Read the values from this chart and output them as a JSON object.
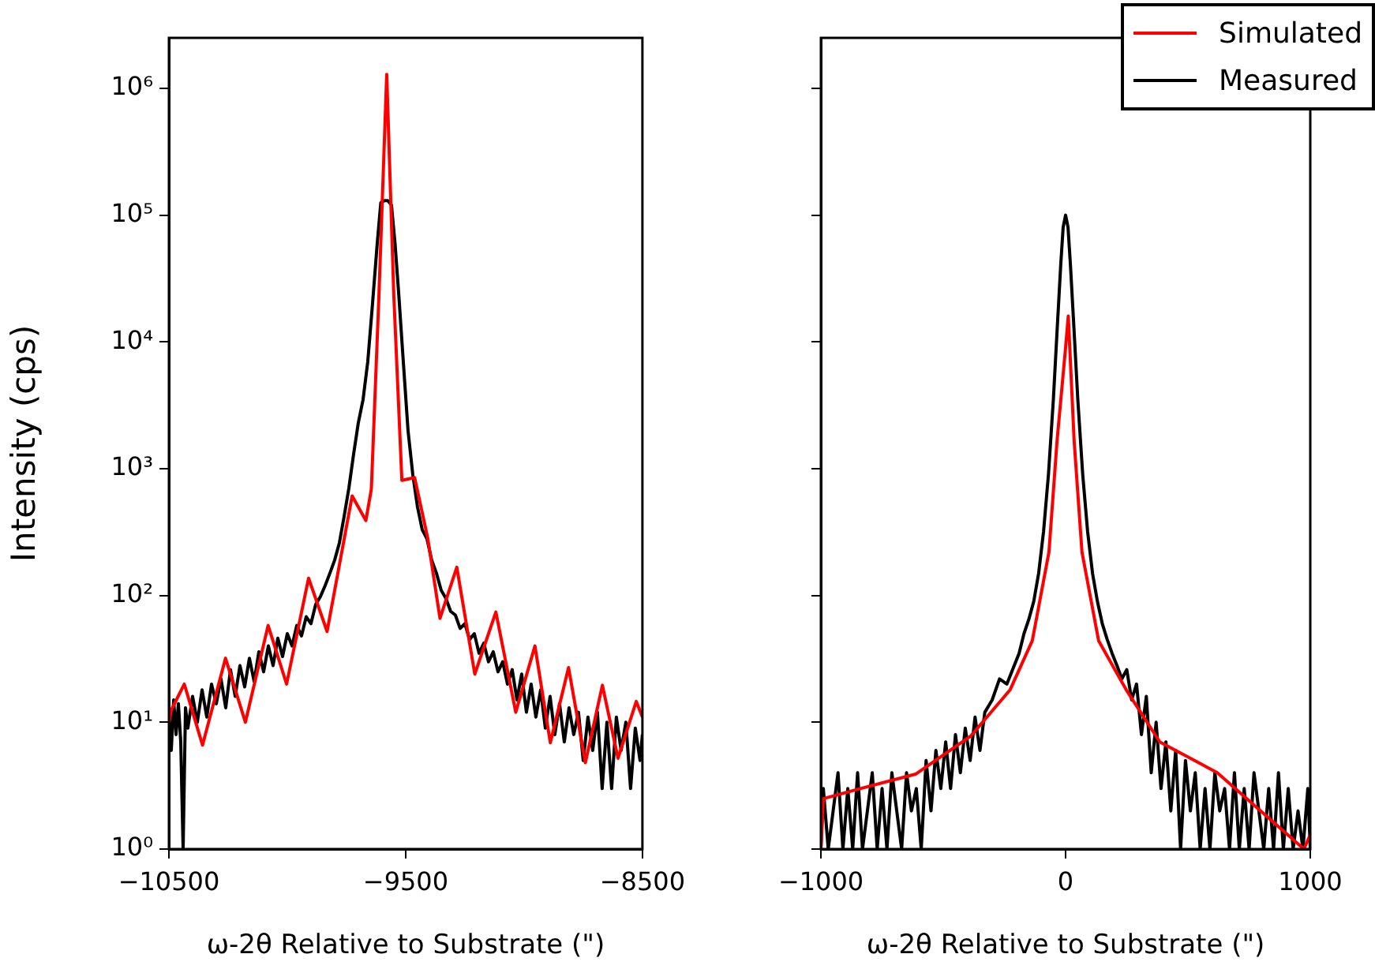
{
  "chart_data": [
    {
      "type": "line",
      "xlabel": "ω-2θ Relative to Substrate (\")",
      "ylabel": "Intensity (cps)",
      "log": "y",
      "grid": false,
      "legend": false,
      "marker": "none",
      "line_style": "solid",
      "xlim": [
        -10500,
        -8500
      ],
      "xticks": [
        {
          "value": -10500,
          "label": "−10500"
        },
        {
          "value": -9500,
          "label": "−9500"
        },
        {
          "value": -8500,
          "label": "−8500"
        }
      ],
      "ylim": [
        1,
        2500000
      ],
      "yticks": [
        {
          "value": 1,
          "label": "10⁰"
        },
        {
          "value": 10,
          "label": "10¹"
        },
        {
          "value": 100,
          "label": "10²"
        },
        {
          "value": 1000,
          "label": "10³"
        },
        {
          "value": 10000,
          "label": "10⁴"
        },
        {
          "value": 100000,
          "label": "10⁵"
        },
        {
          "value": 1000000,
          "label": "10⁶"
        }
      ],
      "series": [
        {
          "color": "#ff0000",
          "x": [
            -10500,
            -10490,
            -10435,
            -10358,
            -10261,
            -10177,
            -10081,
            -10003,
            -9910,
            -9832,
            -9726,
            -9668,
            -9645,
            -9613,
            -9580,
            -9550,
            -9516,
            -9462,
            -9407,
            -9355,
            -9284,
            -9208,
            -9119,
            -9035,
            -8954,
            -8889,
            -8812,
            -8741,
            -8669,
            -8603,
            -8526,
            -8500
          ],
          "values": [
            10,
            12.5,
            20,
            6.6,
            32,
            10,
            58,
            20,
            137,
            52,
            610,
            390,
            690,
            23000,
            1290000,
            23000,
            810,
            850,
            285,
            66,
            167,
            24,
            74,
            12,
            40,
            6.9,
            27,
            4.8,
            19.6,
            5.2,
            14.6,
            11
          ]
        },
        {
          "color": "#000000",
          "x": [
            -10500,
            -10490,
            -10480,
            -10470,
            -10460,
            -10450,
            -10440,
            -10430,
            -10420,
            -10400,
            -10380,
            -10360,
            -10340,
            -10320,
            -10300,
            -10280,
            -10260,
            -10240,
            -10220,
            -10200,
            -10180,
            -10160,
            -10140,
            -10120,
            -10100,
            -10080,
            -10060,
            -10040,
            -10020,
            -10000,
            -9980,
            -9960,
            -9940,
            -9920,
            -9900,
            -9880,
            -9860,
            -9840,
            -9820,
            -9800,
            -9780,
            -9760,
            -9740,
            -9720,
            -9700,
            -9680,
            -9660,
            -9640,
            -9620,
            -9605,
            -9590,
            -9575,
            -9560,
            -9545,
            -9530,
            -9510,
            -9490,
            -9470,
            -9450,
            -9430,
            -9410,
            -9390,
            -9370,
            -9350,
            -9330,
            -9310,
            -9290,
            -9270,
            -9250,
            -9230,
            -9210,
            -9190,
            -9170,
            -9150,
            -9130,
            -9110,
            -9090,
            -9070,
            -9050,
            -9030,
            -9010,
            -8990,
            -8970,
            -8950,
            -8930,
            -8910,
            -8890,
            -8870,
            -8850,
            -8830,
            -8810,
            -8790,
            -8770,
            -8750,
            -8730,
            -8710,
            -8690,
            -8670,
            -8650,
            -8630,
            -8610,
            -8590,
            -8570,
            -8550,
            -8530,
            -8510,
            -8500
          ],
          "values": [
            12,
            6,
            15,
            8,
            14,
            7,
            1,
            13,
            9,
            16,
            10,
            18,
            11,
            20,
            14,
            22,
            13,
            26,
            16,
            28,
            19,
            32,
            21,
            36,
            25,
            40,
            28,
            46,
            33,
            50,
            40,
            58,
            48,
            68,
            60,
            85,
            98,
            120,
            150,
            190,
            260,
            420,
            700,
            1300,
            2300,
            3500,
            7000,
            20000,
            60000,
            125000,
            130000,
            130000,
            120000,
            60000,
            25000,
            7000,
            2000,
            900,
            500,
            330,
            280,
            190,
            150,
            110,
            95,
            75,
            70,
            55,
            60,
            45,
            50,
            35,
            42,
            30,
            36,
            25,
            30,
            20,
            26,
            15,
            24,
            12,
            20,
            11,
            18,
            9,
            16,
            8,
            14,
            7,
            13,
            8,
            12,
            5,
            11,
            6,
            12,
            3,
            10,
            3,
            11,
            6,
            10,
            3,
            9,
            5,
            8
          ]
        }
      ]
    },
    {
      "type": "line",
      "xlabel": "ω-2θ Relative to Substrate (\")",
      "log": "y",
      "grid": false,
      "legend": "top right",
      "marker": "none",
      "line_style": "solid",
      "tick_labels": "x",
      "xlim": [
        -1000,
        1000
      ],
      "xticks": [
        {
          "value": -1000,
          "label": "−1000"
        },
        0,
        1000
      ],
      "ylim": [
        1,
        2500000
      ],
      "yticks": [
        {
          "value": 1,
          "label": null
        },
        {
          "value": 10,
          "label": null
        },
        {
          "value": 100,
          "label": null
        },
        {
          "value": 1000,
          "label": null
        },
        {
          "value": 10000,
          "label": null
        },
        {
          "value": 100000,
          "label": null
        },
        {
          "value": 1000000,
          "label": null
        }
      ],
      "series": [
        {
          "name": "Simulated",
          "color": "#ff0000",
          "x": [
            -1000,
            -990,
            -839,
            -613,
            -387,
            -227,
            -136,
            -68,
            -35,
            0,
            11,
            35,
            67,
            135,
            248,
            385,
            620,
            974,
            1000
          ],
          "values": [
            1,
            2.5,
            3,
            3.9,
            7.8,
            18,
            44,
            220,
            1650,
            9000,
            16000,
            1650,
            220,
            44,
            18,
            7,
            4,
            1,
            1.3
          ]
        },
        {
          "name": "Measured",
          "color": "#000000",
          "x": [
            -1000,
            -990,
            -970,
            -950,
            -930,
            -910,
            -890,
            -870,
            -850,
            -830,
            -810,
            -790,
            -770,
            -750,
            -730,
            -710,
            -690,
            -670,
            -650,
            -630,
            -610,
            -590,
            -570,
            -550,
            -530,
            -510,
            -490,
            -470,
            -450,
            -430,
            -410,
            -390,
            -370,
            -350,
            -330,
            -300,
            -270,
            -240,
            -210,
            -190,
            -170,
            -150,
            -130,
            -110,
            -90,
            -70,
            -50,
            -35,
            -20,
            -10,
            0,
            10,
            20,
            35,
            50,
            70,
            90,
            110,
            130,
            150,
            170,
            190,
            210,
            230,
            250,
            270,
            290,
            310,
            330,
            350,
            370,
            390,
            410,
            430,
            450,
            470,
            490,
            510,
            530,
            550,
            570,
            590,
            610,
            630,
            650,
            670,
            690,
            710,
            730,
            750,
            770,
            790,
            810,
            830,
            850,
            870,
            890,
            910,
            930,
            950,
            970,
            990,
            1000
          ],
          "values": [
            1,
            3,
            1,
            2,
            4,
            1,
            3,
            1,
            4,
            1,
            2,
            4,
            1,
            3,
            1,
            4,
            2,
            1,
            4,
            2,
            3,
            1,
            5,
            2,
            6,
            3,
            7,
            3,
            8,
            4,
            9,
            5,
            11,
            6,
            12,
            15,
            22,
            20,
            28,
            35,
            50,
            65,
            90,
            150,
            320,
            900,
            3500,
            12000,
            40000,
            80000,
            100000,
            80000,
            40000,
            12000,
            3500,
            900,
            320,
            150,
            90,
            60,
            45,
            35,
            28,
            22,
            26,
            15,
            20,
            8,
            16,
            4,
            10,
            3,
            7,
            2,
            6,
            1,
            5,
            2,
            4,
            1,
            3,
            1,
            4,
            2,
            3,
            1,
            4,
            1,
            3,
            1,
            4,
            2,
            1,
            3,
            1,
            4,
            1,
            3,
            1,
            2,
            1,
            3,
            1
          ]
        }
      ]
    }
  ]
}
